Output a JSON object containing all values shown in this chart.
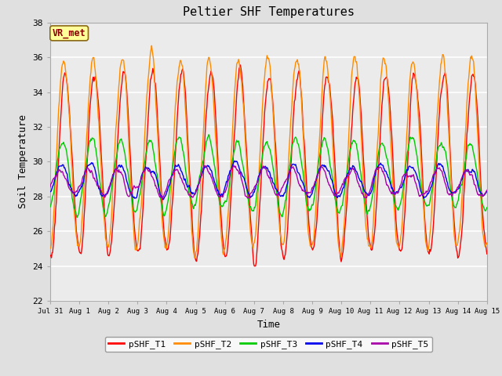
{
  "title": "Peltier SHF Temperatures",
  "xlabel": "Time",
  "ylabel": "Soil Temperature",
  "ylim": [
    22,
    38
  ],
  "xlim_days": [
    0,
    15
  ],
  "annotation_text": "VR_met",
  "annotation_bg": "#FFFF99",
  "annotation_border": "#8B6914",
  "annotation_text_color": "#8B0000",
  "bg_color": "#E0E0E0",
  "axes_bg": "#EBEBEB",
  "series_colors": {
    "pSHF_T1": "#FF0000",
    "pSHF_T2": "#FF8C00",
    "pSHF_T3": "#00CC00",
    "pSHF_T4": "#0000EE",
    "pSHF_T5": "#AA00AA"
  },
  "xtick_labels": [
    "Jul 31",
    "Aug 1",
    "Aug 2",
    "Aug 3",
    "Aug 4",
    "Aug 5",
    "Aug 6",
    "Aug 7",
    "Aug 8",
    "Aug 9",
    "Aug 10",
    "Aug 11",
    "Aug 12",
    "Aug 13",
    "Aug 14",
    "Aug 15"
  ],
  "xtick_positions": [
    0,
    1,
    2,
    3,
    4,
    5,
    6,
    7,
    8,
    9,
    10,
    11,
    12,
    13,
    14,
    15
  ],
  "ytick_labels": [
    "22",
    "24",
    "26",
    "28",
    "30",
    "32",
    "34",
    "36",
    "38"
  ],
  "ytick_positions": [
    22,
    24,
    26,
    28,
    30,
    32,
    34,
    36,
    38
  ],
  "legend_entries": [
    "pSHF_T1",
    "pSHF_T2",
    "pSHF_T3",
    "pSHF_T4",
    "pSHF_T5"
  ],
  "line_width": 1.0,
  "font_family": "DejaVu Sans Mono"
}
